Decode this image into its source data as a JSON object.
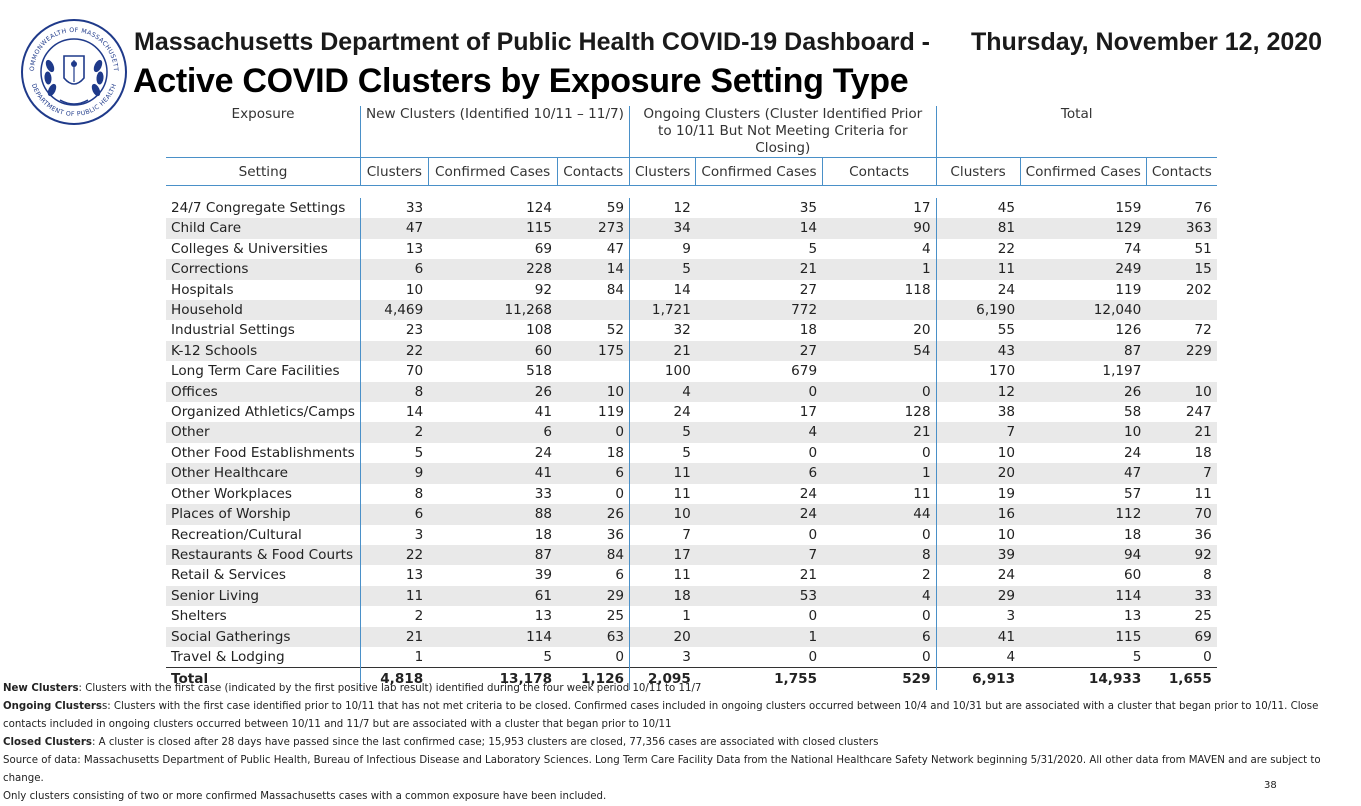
{
  "header": {
    "line1": "Massachusetts Department of Public Health COVID-19 Dashboard -",
    "date": "Thursday, November 12, 2020",
    "title": "Active COVID Clusters by Exposure Setting Type"
  },
  "seal": {
    "text_top": "COMMONWEALTH OF MASSACHUSETTS",
    "text_bottom": "DEPARTMENT OF PUBLIC HEALTH",
    "color": "#1f3a8a"
  },
  "table": {
    "groups": {
      "exposure": "Exposure",
      "new": "New Clusters (Identified 10/11 – 11/7)",
      "ongoing": "Ongoing Clusters (Cluster Identified Prior to 10/11 But Not Meeting Criteria for Closing)",
      "total": "Total"
    },
    "columns": [
      "Setting",
      "Clusters",
      "Confirmed Cases",
      "Contacts",
      "Clusters",
      "Confirmed Cases",
      "Contacts",
      "Clusters",
      "Confirmed Cases",
      "Contacts"
    ],
    "rows": [
      [
        "24/7 Congregate Settings",
        "33",
        "124",
        "59",
        "12",
        "35",
        "17",
        "45",
        "159",
        "76"
      ],
      [
        "Child Care",
        "47",
        "115",
        "273",
        "34",
        "14",
        "90",
        "81",
        "129",
        "363"
      ],
      [
        "Colleges & Universities",
        "13",
        "69",
        "47",
        "9",
        "5",
        "4",
        "22",
        "74",
        "51"
      ],
      [
        "Corrections",
        "6",
        "228",
        "14",
        "5",
        "21",
        "1",
        "11",
        "249",
        "15"
      ],
      [
        "Hospitals",
        "10",
        "92",
        "84",
        "14",
        "27",
        "118",
        "24",
        "119",
        "202"
      ],
      [
        "Household",
        "4,469",
        "11,268",
        "",
        "1,721",
        "772",
        "",
        "6,190",
        "12,040",
        ""
      ],
      [
        "Industrial Settings",
        "23",
        "108",
        "52",
        "32",
        "18",
        "20",
        "55",
        "126",
        "72"
      ],
      [
        "K-12 Schools",
        "22",
        "60",
        "175",
        "21",
        "27",
        "54",
        "43",
        "87",
        "229"
      ],
      [
        "Long Term Care Facilities",
        "70",
        "518",
        "",
        "100",
        "679",
        "",
        "170",
        "1,197",
        ""
      ],
      [
        "Offices",
        "8",
        "26",
        "10",
        "4",
        "0",
        "0",
        "12",
        "26",
        "10"
      ],
      [
        "Organized Athletics/Camps",
        "14",
        "41",
        "119",
        "24",
        "17",
        "128",
        "38",
        "58",
        "247"
      ],
      [
        "Other",
        "2",
        "6",
        "0",
        "5",
        "4",
        "21",
        "7",
        "10",
        "21"
      ],
      [
        "Other Food Establishments",
        "5",
        "24",
        "18",
        "5",
        "0",
        "0",
        "10",
        "24",
        "18"
      ],
      [
        "Other Healthcare",
        "9",
        "41",
        "6",
        "11",
        "6",
        "1",
        "20",
        "47",
        "7"
      ],
      [
        "Other Workplaces",
        "8",
        "33",
        "0",
        "11",
        "24",
        "11",
        "19",
        "57",
        "11"
      ],
      [
        "Places of Worship",
        "6",
        "88",
        "26",
        "10",
        "24",
        "44",
        "16",
        "112",
        "70"
      ],
      [
        "Recreation/Cultural",
        "3",
        "18",
        "36",
        "7",
        "0",
        "0",
        "10",
        "18",
        "36"
      ],
      [
        "Restaurants & Food Courts",
        "22",
        "87",
        "84",
        "17",
        "7",
        "8",
        "39",
        "94",
        "92"
      ],
      [
        "Retail & Services",
        "13",
        "39",
        "6",
        "11",
        "21",
        "2",
        "24",
        "60",
        "8"
      ],
      [
        "Senior Living",
        "11",
        "61",
        "29",
        "18",
        "53",
        "4",
        "29",
        "114",
        "33"
      ],
      [
        "Shelters",
        "2",
        "13",
        "25",
        "1",
        "0",
        "0",
        "3",
        "13",
        "25"
      ],
      [
        "Social Gatherings",
        "21",
        "114",
        "63",
        "20",
        "1",
        "6",
        "41",
        "115",
        "69"
      ],
      [
        "Travel & Lodging",
        "1",
        "5",
        "0",
        "3",
        "0",
        "0",
        "4",
        "5",
        "0"
      ]
    ],
    "total": [
      "Total",
      "4,818",
      "13,178",
      "1,126",
      "2,095",
      "1,755",
      "529",
      "6,913",
      "14,933",
      "1,655"
    ]
  },
  "notes": {
    "new_label": "New Clusters",
    "new_text": ": Clusters with the first case (indicated by the first positive lab result) identified during the four week period 10/11 to 11/7",
    "ongoing_label": "Ongoing Clusters",
    "ongoing_text": "s: Clusters with the first case identified prior to 10/11 that has not met criteria to be closed. Confirmed cases included in ongoing clusters occurred between 10/4 and 10/31 but are associated with a cluster that began prior to 10/11. Close contacts included in ongoing clusters occurred between 10/11 and 11/7 but are associated with a cluster that began prior to 10/11",
    "closed_label": "Closed Clusters",
    "closed_text": ": A cluster is closed after 28 days have passed since the last confirmed case; 15,953 clusters are closed, 77,356 cases are associated with closed clusters",
    "source": "Source of data: Massachusetts Department of Public Health, Bureau of Infectious Disease and Laboratory Sciences. Long Term Care Facility Data from the National Healthcare Safety Network beginning 5/31/2020. All other data from MAVEN and are subject to change.",
    "only": "Only clusters consisting of two or more confirmed Massachusetts cases with a common exposure have been included."
  },
  "page_number": "38"
}
